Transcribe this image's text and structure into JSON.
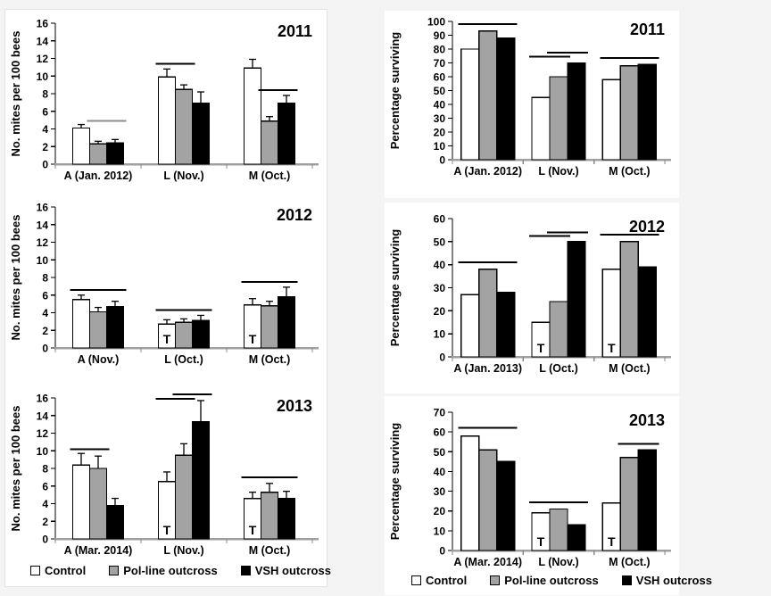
{
  "page": {
    "background": "#f4f4f4",
    "panel_background": "#ffffff"
  },
  "colors": {
    "control_fill": "#ffffff",
    "polline_fill": "#a3a3a3",
    "vsh_fill": "#000000",
    "bar_border": "#000000",
    "x_axis": "#a0a0a0",
    "y_axis": "#000000",
    "sig_line_default": "#000000",
    "sig_line_gray": "#8c8c8c"
  },
  "legend": {
    "items": [
      {
        "key": "control",
        "label": "Control"
      },
      {
        "key": "polline",
        "label": "Pol-line outcross"
      },
      {
        "key": "vsh",
        "label": "VSH outcross"
      }
    ]
  },
  "chart_data": [
    {
      "id": "mites-2011",
      "type": "bar",
      "title": "2011",
      "ylabel": "No. mites per 100 bees",
      "ylim": [
        0,
        16
      ],
      "yticks": [
        0,
        2,
        4,
        6,
        8,
        10,
        12,
        14,
        16
      ],
      "categories": [
        "A (Jan. 2012)",
        "L (Nov.)",
        "M (Oct.)"
      ],
      "series": [
        {
          "key": "control",
          "name": "Control",
          "values": [
            4.1,
            9.9,
            10.9
          ],
          "errors": [
            0.4,
            0.9,
            1.0
          ]
        },
        {
          "key": "polline",
          "name": "Pol-line outcross",
          "values": [
            2.3,
            8.5,
            4.9
          ],
          "errors": [
            0.3,
            0.5,
            0.5
          ]
        },
        {
          "key": "vsh",
          "name": "VSH outcross",
          "values": [
            2.4,
            6.9,
            6.9
          ],
          "errors": [
            0.4,
            1.3,
            0.9
          ]
        }
      ],
      "t_marks": [
        "",
        "",
        ""
      ],
      "sig_lines": [
        {
          "cat": 0,
          "from": 1,
          "to": 2,
          "y": 4.9,
          "color": "#8c8c8c"
        },
        {
          "cat": 1,
          "from": 0,
          "to": 1,
          "y": 11.4
        },
        {
          "cat": 2,
          "from": 1,
          "to": 2,
          "y": 8.4
        }
      ]
    },
    {
      "id": "mites-2012",
      "type": "bar",
      "title": "2012",
      "ylabel": "No. mites per 100 bees",
      "ylim": [
        0,
        16
      ],
      "yticks": [
        0,
        2,
        4,
        6,
        8,
        10,
        12,
        14,
        16
      ],
      "categories": [
        "A (Nov.)",
        "L (Oct.)",
        "M (Oct.)"
      ],
      "series": [
        {
          "key": "control",
          "name": "Control",
          "values": [
            5.5,
            2.7,
            4.9
          ],
          "errors": [
            0.5,
            0.5,
            0.7
          ]
        },
        {
          "key": "polline",
          "name": "Pol-line outcross",
          "values": [
            4.1,
            2.9,
            4.8
          ],
          "errors": [
            0.5,
            0.4,
            0.5
          ]
        },
        {
          "key": "vsh",
          "name": "VSH outcross",
          "values": [
            4.7,
            3.1,
            5.8
          ],
          "errors": [
            0.6,
            0.6,
            1.1
          ]
        }
      ],
      "t_marks": [
        "",
        "T",
        "T"
      ],
      "sig_lines": [
        {
          "cat": 0,
          "from": 0,
          "to": 2,
          "y": 6.6
        },
        {
          "cat": 1,
          "from": 0,
          "to": 2,
          "y": 4.3
        },
        {
          "cat": 2,
          "from": 0,
          "to": 2,
          "y": 7.5
        }
      ]
    },
    {
      "id": "mites-2013",
      "type": "bar",
      "title": "2013",
      "ylabel": "No. mites per 100 bees",
      "ylim": [
        0,
        16
      ],
      "yticks": [
        0,
        2,
        4,
        6,
        8,
        10,
        12,
        14,
        16
      ],
      "categories": [
        "A (Mar. 2014)",
        "L (Nov.)",
        "M (Oct.)"
      ],
      "series": [
        {
          "key": "control",
          "name": "Control",
          "values": [
            8.4,
            6.5,
            4.6
          ],
          "errors": [
            1.3,
            1.1,
            0.7
          ]
        },
        {
          "key": "polline",
          "name": "Pol-line outcross",
          "values": [
            8.0,
            9.5,
            5.3
          ],
          "errors": [
            1.4,
            1.3,
            1.0
          ]
        },
        {
          "key": "vsh",
          "name": "VSH outcross",
          "values": [
            3.8,
            13.3,
            4.6
          ],
          "errors": [
            0.8,
            2.4,
            0.8
          ]
        }
      ],
      "t_marks": [
        "",
        "T",
        "T"
      ],
      "sig_lines": [
        {
          "cat": 0,
          "from": 0,
          "to": 1,
          "y": 10.2
        },
        {
          "cat": 1,
          "from": 0,
          "to": 1,
          "y": 15.9
        },
        {
          "cat": 1,
          "from": 1,
          "to": 2,
          "y": 16.4
        },
        {
          "cat": 2,
          "from": 0,
          "to": 2,
          "y": 7.0
        }
      ]
    },
    {
      "id": "surviving-2011",
      "type": "bar",
      "title": "2011",
      "ylabel": "Percentage surviving",
      "ylim": [
        0,
        100
      ],
      "yticks": [
        0,
        10,
        20,
        30,
        40,
        50,
        60,
        70,
        80,
        90,
        100
      ],
      "categories": [
        "A (Jan. 2012)",
        "L (Nov.)",
        "M (Oct.)"
      ],
      "series": [
        {
          "key": "control",
          "name": "Control",
          "values": [
            80,
            45,
            58
          ]
        },
        {
          "key": "polline",
          "name": "Pol-line outcross",
          "values": [
            93,
            60,
            68
          ]
        },
        {
          "key": "vsh",
          "name": "VSH outcross",
          "values": [
            88,
            70,
            69
          ]
        }
      ],
      "t_marks": [
        "",
        "",
        ""
      ],
      "sig_lines": [
        {
          "cat": 0,
          "from": 0,
          "to": 2,
          "y": 98
        },
        {
          "cat": 1,
          "from": 0,
          "to": 1,
          "y": 74.5
        },
        {
          "cat": 1,
          "from": 1,
          "to": 2,
          "y": 77.5
        },
        {
          "cat": 2,
          "from": 0,
          "to": 2,
          "y": 73.5
        }
      ]
    },
    {
      "id": "surviving-2012",
      "type": "bar",
      "title": "2012",
      "ylabel": "Percentage surviving",
      "ylim": [
        0,
        60
      ],
      "yticks": [
        0,
        10,
        20,
        30,
        40,
        50,
        60
      ],
      "categories": [
        "A (Jan. 2013)",
        "L (Oct.)",
        "M (Oct.)"
      ],
      "series": [
        {
          "key": "control",
          "name": "Control",
          "values": [
            27,
            15,
            38
          ]
        },
        {
          "key": "polline",
          "name": "Pol-line outcross",
          "values": [
            38,
            24,
            50
          ]
        },
        {
          "key": "vsh",
          "name": "VSH outcross",
          "values": [
            28,
            50,
            39
          ]
        }
      ],
      "t_marks": [
        "",
        "T",
        "T"
      ],
      "sig_lines": [
        {
          "cat": 0,
          "from": 0,
          "to": 2,
          "y": 41
        },
        {
          "cat": 1,
          "from": 0,
          "to": 1,
          "y": 52.5
        },
        {
          "cat": 1,
          "from": 1,
          "to": 2,
          "y": 54
        },
        {
          "cat": 2,
          "from": 0,
          "to": 2,
          "y": 53
        }
      ]
    },
    {
      "id": "surviving-2013",
      "type": "bar",
      "title": "2013",
      "ylabel": "Percentage surviving",
      "ylim": [
        0,
        70
      ],
      "yticks": [
        0,
        10,
        20,
        30,
        40,
        50,
        60,
        70
      ],
      "categories": [
        "A (Mar. 2014)",
        "L (Nov.)",
        "M (Oct.)"
      ],
      "series": [
        {
          "key": "control",
          "name": "Control",
          "values": [
            58,
            19,
            24
          ]
        },
        {
          "key": "polline",
          "name": "Pol-line outcross",
          "values": [
            51,
            21,
            47
          ]
        },
        {
          "key": "vsh",
          "name": "VSH outcross",
          "values": [
            45,
            13,
            51
          ]
        }
      ],
      "t_marks": [
        "",
        "T",
        "T"
      ],
      "sig_lines": [
        {
          "cat": 0,
          "from": 0,
          "to": 2,
          "y": 62
        },
        {
          "cat": 1,
          "from": 0,
          "to": 2,
          "y": 24.5
        },
        {
          "cat": 2,
          "from": 1,
          "to": 2,
          "y": 54
        }
      ]
    }
  ]
}
